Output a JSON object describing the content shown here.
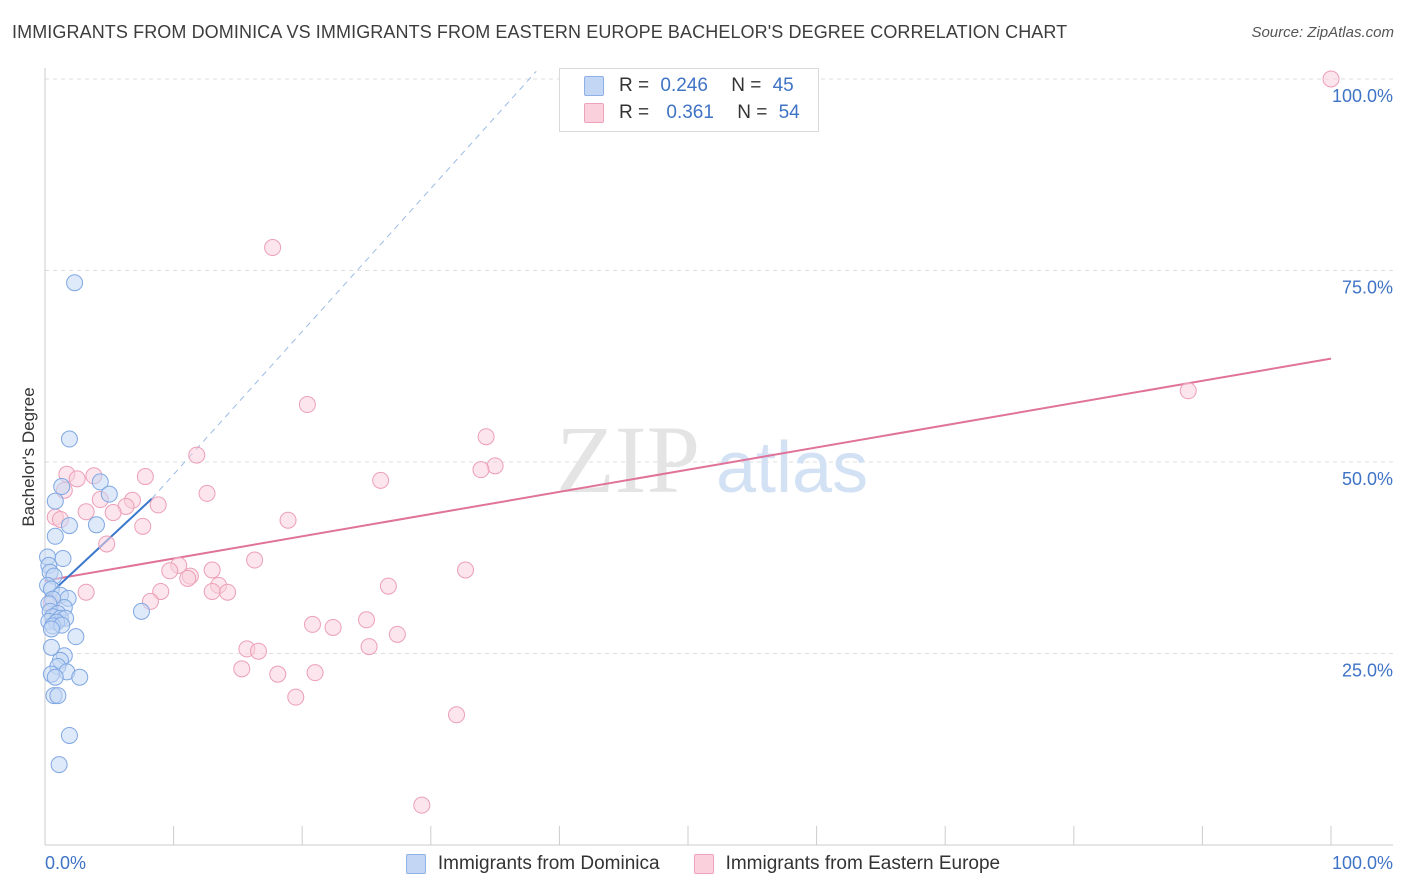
{
  "title": "IMMIGRANTS FROM DOMINICA VS IMMIGRANTS FROM EASTERN EUROPE BACHELOR'S DEGREE CORRELATION CHART",
  "source": "Source: ZipAtlas.com",
  "watermark": {
    "zip": "ZIP",
    "atlas": "atlas"
  },
  "stats": [
    {
      "r_label": "R =",
      "r_value": "0.246",
      "n_label": "N =",
      "n_value": "45"
    },
    {
      "r_label": "R =",
      "r_value": "0.361",
      "n_label": "N =",
      "n_value": "54"
    }
  ],
  "legend": [
    "Immigrants from Dominica",
    "Immigrants from Eastern Europe"
  ],
  "colors": {
    "blue_fill": "#c3d7f4",
    "blue_stroke": "#7fa7e3",
    "blue_line": "#3a78cc",
    "pink_fill": "#f9d0dc",
    "pink_stroke": "#ec9fb7",
    "pink_line": "#e07399",
    "axis_label": "#3f73c6",
    "grid": "#dddddd"
  },
  "chart_data": {
    "type": "scatter",
    "title": "IMMIGRANTS FROM DOMINICA VS IMMIGRANTS FROM EASTERN EUROPE BACHELOR'S DEGREE CORRELATION CHART",
    "xlabel": "",
    "ylabel": "Bachelor's Degree",
    "xlim": [
      0,
      100
    ],
    "ylim": [
      0,
      100
    ],
    "x_tick_labels": [
      "0.0%",
      "100.0%"
    ],
    "y_ticks": [
      25,
      50,
      75,
      100
    ],
    "y_tick_labels": [
      "25.0%",
      "50.0%",
      "75.0%",
      "100.0%"
    ],
    "series": [
      {
        "name": "Immigrants from Dominica",
        "r": 0.246,
        "n": 45,
        "trend": {
          "x": [
            0,
            8.3
          ],
          "y": [
            32.2,
            45.2
          ],
          "extended_x": [
            8.3,
            38.2
          ],
          "extended_y": [
            45.2,
            101.0
          ]
        },
        "points": [
          [
            2.3,
            73.4
          ],
          [
            1.9,
            53.0
          ],
          [
            1.3,
            46.8
          ],
          [
            4.3,
            47.4
          ],
          [
            5.0,
            45.8
          ],
          [
            0.8,
            44.9
          ],
          [
            4.0,
            41.8
          ],
          [
            1.9,
            41.7
          ],
          [
            0.8,
            40.3
          ],
          [
            0.2,
            37.6
          ],
          [
            1.4,
            37.4
          ],
          [
            0.3,
            36.5
          ],
          [
            0.4,
            35.6
          ],
          [
            0.7,
            35.1
          ],
          [
            0.2,
            33.9
          ],
          [
            0.5,
            33.4
          ],
          [
            1.2,
            32.6
          ],
          [
            1.8,
            32.2
          ],
          [
            0.6,
            32.1
          ],
          [
            0.3,
            31.5
          ],
          [
            1.5,
            31.0
          ],
          [
            0.4,
            30.5
          ],
          [
            1.0,
            30.2
          ],
          [
            0.6,
            29.8
          ],
          [
            1.2,
            29.6
          ],
          [
            1.6,
            29.6
          ],
          [
            0.3,
            29.2
          ],
          [
            0.9,
            29.1
          ],
          [
            0.6,
            28.6
          ],
          [
            1.3,
            28.7
          ],
          [
            0.5,
            28.2
          ],
          [
            7.5,
            30.5
          ],
          [
            2.4,
            27.2
          ],
          [
            0.5,
            25.8
          ],
          [
            1.5,
            24.7
          ],
          [
            1.2,
            24.1
          ],
          [
            1.0,
            23.3
          ],
          [
            1.7,
            22.6
          ],
          [
            0.5,
            22.3
          ],
          [
            2.7,
            21.9
          ],
          [
            0.8,
            21.9
          ],
          [
            0.7,
            19.5
          ],
          [
            1.0,
            19.5
          ],
          [
            1.9,
            14.3
          ],
          [
            1.1,
            10.5
          ]
        ]
      },
      {
        "name": "Immigrants from Eastern Europe",
        "r": 0.361,
        "n": 54,
        "trend": {
          "x": [
            0,
            100
          ],
          "y": [
            34.5,
            63.5
          ]
        },
        "points": [
          [
            100,
            100
          ],
          [
            17.7,
            78.0
          ],
          [
            88.9,
            59.3
          ],
          [
            20.4,
            57.5
          ],
          [
            34.3,
            53.3
          ],
          [
            11.8,
            50.9
          ],
          [
            35.0,
            49.5
          ],
          [
            33.9,
            49.0
          ],
          [
            1.7,
            48.4
          ],
          [
            3.8,
            48.2
          ],
          [
            7.8,
            48.1
          ],
          [
            2.5,
            47.8
          ],
          [
            26.1,
            47.6
          ],
          [
            1.5,
            46.3
          ],
          [
            12.6,
            45.9
          ],
          [
            4.3,
            45.1
          ],
          [
            6.8,
            45.0
          ],
          [
            8.8,
            44.4
          ],
          [
            6.3,
            44.2
          ],
          [
            3.2,
            43.5
          ],
          [
            5.3,
            43.4
          ],
          [
            0.8,
            42.8
          ],
          [
            18.9,
            42.4
          ],
          [
            7.6,
            41.6
          ],
          [
            4.8,
            39.3
          ],
          [
            16.3,
            37.2
          ],
          [
            10.4,
            36.5
          ],
          [
            9.7,
            35.8
          ],
          [
            13.0,
            35.9
          ],
          [
            32.7,
            35.9
          ],
          [
            11.3,
            35.1
          ],
          [
            11.1,
            34.8
          ],
          [
            13.5,
            33.9
          ],
          [
            26.7,
            33.8
          ],
          [
            13.0,
            33.1
          ],
          [
            14.2,
            33.0
          ],
          [
            9.0,
            33.1
          ],
          [
            8.2,
            31.8
          ],
          [
            25.0,
            29.4
          ],
          [
            20.8,
            28.8
          ],
          [
            22.4,
            28.4
          ],
          [
            27.4,
            27.5
          ],
          [
            25.2,
            25.9
          ],
          [
            15.7,
            25.6
          ],
          [
            16.6,
            25.3
          ],
          [
            15.3,
            23.0
          ],
          [
            18.1,
            22.3
          ],
          [
            21.0,
            22.5
          ],
          [
            19.5,
            19.3
          ],
          [
            32.0,
            17.0
          ],
          [
            29.3,
            5.2
          ],
          [
            1.2,
            42.5
          ],
          [
            3.2,
            33.0
          ],
          [
            0.5,
            31.6
          ]
        ]
      }
    ]
  }
}
